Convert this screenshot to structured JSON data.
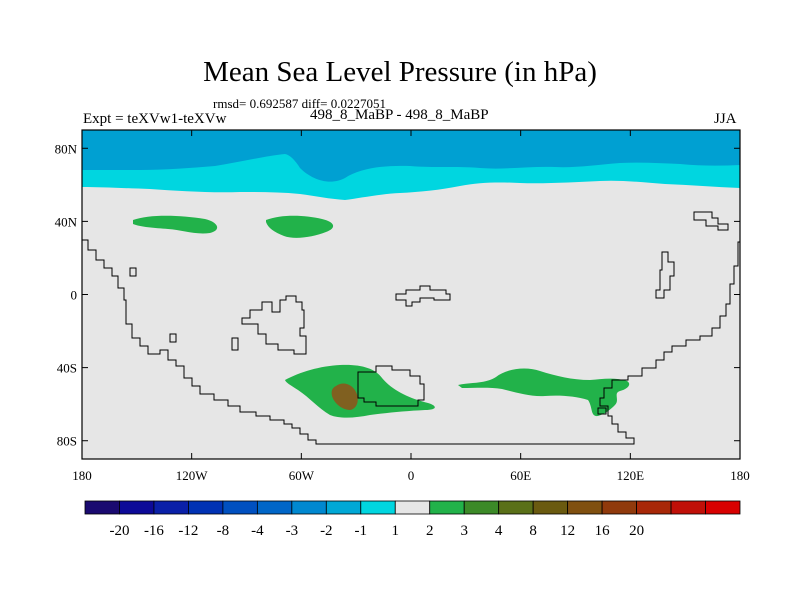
{
  "title": "Mean Sea Level Pressure (in hPa)",
  "stats_line": "rmsd= 0.692587 diff= 0.0227051",
  "experiment_label": "Expt = teXVw1-teXVw",
  "experiment_name": "498_8_MaBP - 498_8_MaBP",
  "season": "JJA",
  "axes": {
    "x_ticks": [
      "180",
      "120W",
      "60W",
      "0",
      "60E",
      "120E",
      "180"
    ],
    "y_ticks": [
      "80N",
      "40N",
      "0",
      "40S",
      "80S"
    ]
  },
  "chart_data": {
    "type": "heatmap",
    "title": "Mean Sea Level Pressure (in hPa)",
    "subtitle": "rmsd= 0.692587 diff= 0.0227051",
    "xlabel": "",
    "ylabel": "",
    "xlim": [
      -180,
      180
    ],
    "ylim": [
      -90,
      90
    ],
    "x_tick_values": [
      -180,
      -120,
      -60,
      0,
      60,
      120,
      180
    ],
    "y_tick_values": [
      80,
      40,
      0,
      -40,
      -80
    ],
    "regions": [
      {
        "name": "Arctic band",
        "level": "-2 to -3",
        "color": "#00a0d2",
        "lat_range": [
          65,
          90
        ]
      },
      {
        "name": "Subarctic band",
        "level": "-1 to -2",
        "color": "#00d6e0",
        "lat_range": [
          52,
          72
        ]
      },
      {
        "name": "North Pacific blob",
        "level": "1 to 2",
        "color": "#22b24a",
        "center": [
          -135,
          39
        ]
      },
      {
        "name": "North Atlantic-side blob",
        "level": "1 to 2",
        "color": "#22b24a",
        "center": [
          -75,
          37
        ]
      },
      {
        "name": "South Atlantic blob",
        "level": "1 to 2",
        "color": "#22b24a",
        "center": [
          -40,
          -52
        ]
      },
      {
        "name": "South Atlantic core",
        "level": "4 to 8",
        "color": "#806020",
        "center": [
          -38,
          -56
        ]
      },
      {
        "name": "Southern Indian blob",
        "level": "1 to 2",
        "color": "#22b24a",
        "center": [
          70,
          -50
        ]
      }
    ],
    "colorbar": {
      "labels": [
        "-20",
        "-16",
        "-12",
        "-8",
        "-4",
        "-3",
        "-2",
        "-1",
        "1",
        "2",
        "3",
        "4",
        "8",
        "12",
        "16",
        "20"
      ],
      "colors": [
        "#1a0a70",
        "#0d0a98",
        "#0a20a8",
        "#0032b4",
        "#0050c0",
        "#0066c8",
        "#0088d0",
        "#00a8d6",
        "#00d6e0",
        "#e6e6e6",
        "#22b24a",
        "#3c8a28",
        "#5a7018",
        "#6a5a10",
        "#805010",
        "#903a0c",
        "#a82808",
        "#c01008",
        "#d80000"
      ]
    }
  }
}
